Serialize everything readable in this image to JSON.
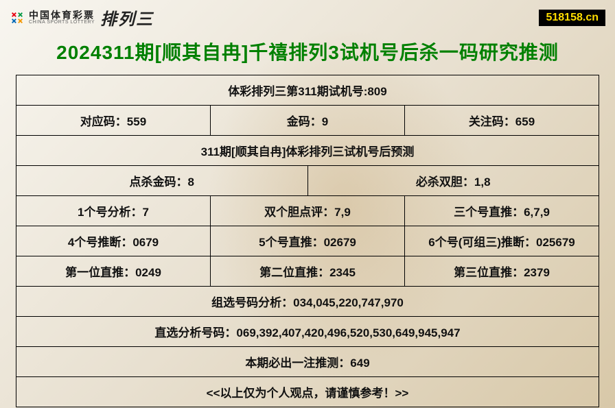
{
  "brand": {
    "cn": "中国体育彩票",
    "en": "CHINA SPORTS LOTTERY",
    "suffix": "排列三"
  },
  "site_badge": "518158.cn",
  "title": "2024311期[顺其自冉]千禧排列3试机号后杀一码研究推测",
  "colors": {
    "title": "#008000",
    "border": "#000000",
    "badge_bg": "#000000",
    "badge_fg": "#ffde00"
  },
  "table": {
    "rows": [
      {
        "type": "full",
        "text": "体彩排列三第311期试机号:809"
      },
      {
        "type": "cols3",
        "cells": [
          "对应码：559",
          "金码：9",
          "关注码：659"
        ]
      },
      {
        "type": "full",
        "text": "311期[顺其自冉]体彩排列三试机号后预测"
      },
      {
        "type": "cols2",
        "cells": [
          "点杀金码：8",
          "必杀双胆：1,8"
        ]
      },
      {
        "type": "cols3",
        "cells": [
          "1个号分析：7",
          "双个胆点评：7,9",
          "三个号直推：6,7,9"
        ]
      },
      {
        "type": "cols3",
        "cells": [
          "4个号推断：0679",
          "5个号直推：02679",
          "6个号(可组三)推断：025679"
        ]
      },
      {
        "type": "cols3",
        "cells": [
          "第一位直推：0249",
          "第二位直推：2345",
          "第三位直推：2379"
        ]
      },
      {
        "type": "full",
        "text": "组选号码分析：034,045,220,747,970"
      },
      {
        "type": "full",
        "text": "直选分析号码：069,392,407,420,496,520,530,649,945,947"
      },
      {
        "type": "full",
        "text": "本期必出一注推测：649"
      },
      {
        "type": "full",
        "text": "<<以上仅为个人观点，请谨慎参考！>>"
      }
    ]
  }
}
